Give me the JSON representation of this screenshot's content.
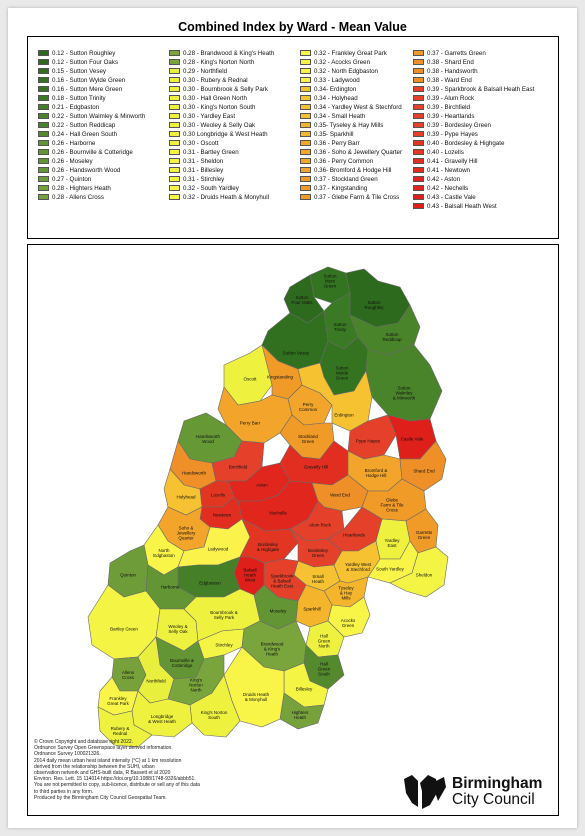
{
  "title": "Combined Index by Ward - Mean Value",
  "colors": {
    "c012": "#2f6b1f",
    "c016": "#2f6b1f",
    "c021": "#4a8a2a",
    "c026": "#6b9a35",
    "c028": "#7ea33c",
    "c029": "#e9f03e",
    "c031": "#fff44a",
    "c034": "#f4b42c",
    "c037": "#f0982a",
    "c039": "#e43a25",
    "c043": "#e31f1a"
  },
  "legend": {
    "columns": [
      [
        {
          "label": "0.12 - Sutton Roughley",
          "color": "#2d6a1d"
        },
        {
          "label": "0.12 - Sutton Four Oaks",
          "color": "#2d6a1d"
        },
        {
          "label": "0.15 - Sutton Vesey",
          "color": "#31701f"
        },
        {
          "label": "0.16 - Sutton Wylde Green",
          "color": "#347421"
        },
        {
          "label": "0.16 - Sutton Mere Green",
          "color": "#347421"
        },
        {
          "label": "0.18 - Sutton Trinity",
          "color": "#3a7a24"
        },
        {
          "label": "0.21 - Edgbaston",
          "color": "#457f27"
        },
        {
          "label": "0.22 - Sutton Walmley & Minworth",
          "color": "#4a842a"
        },
        {
          "label": "0.22 - Sutton Reddicap",
          "color": "#4a842a"
        },
        {
          "label": "0.24 - Hall Green South",
          "color": "#55892e"
        },
        {
          "label": "0.26 - Harborne",
          "color": "#639534"
        },
        {
          "label": "0.26 - Bournville & Cotteridge",
          "color": "#639534"
        },
        {
          "label": "0.26 - Moseley",
          "color": "#639534"
        },
        {
          "label": "0.26 - Handsworth Wood",
          "color": "#669835"
        },
        {
          "label": "0.27 - Quinton",
          "color": "#6e9c38"
        },
        {
          "label": "0.28 - Highters Heath",
          "color": "#77a13b"
        },
        {
          "label": "0.28 - Allens Cross",
          "color": "#77a13b"
        }
      ],
      [
        {
          "label": "0.28 - Brandwood & King's Heath",
          "color": "#7aa43c"
        },
        {
          "label": "0.28 - King's Norton North",
          "color": "#7aa43c"
        },
        {
          "label": "0.29 - Northfield",
          "color": "#e8ef3c"
        },
        {
          "label": "0.30 - Rubery & Rednal",
          "color": "#eef23e"
        },
        {
          "label": "0.30 - Bournbrook & Selly Park",
          "color": "#eef23e"
        },
        {
          "label": "0.30 - Hall Green North",
          "color": "#eef23e"
        },
        {
          "label": "0.30 - King's Norton South",
          "color": "#eef23e"
        },
        {
          "label": "0.30 - Yardley East",
          "color": "#eef23e"
        },
        {
          "label": "0.30 - Weoley & Selly Oak",
          "color": "#eef23e"
        },
        {
          "label": "0.30 Longbridge & West Heath",
          "color": "#eef23e"
        },
        {
          "label": "0.30 - Oscott",
          "color": "#eef23e"
        },
        {
          "label": "0.31 - Bartley Green",
          "color": "#f3f444"
        },
        {
          "label": "0.31 - Sheldon",
          "color": "#f3f444"
        },
        {
          "label": "0.31 - Billesley",
          "color": "#f3f444"
        },
        {
          "label": "0.31 - Stirchley",
          "color": "#f3f444"
        },
        {
          "label": "0.32 - South Yardley",
          "color": "#f8f548"
        },
        {
          "label": "0.32 - Druids Heath & Monyhull",
          "color": "#f8f548"
        }
      ],
      [
        {
          "label": "0.32 - Frankley Great Park",
          "color": "#f8f548"
        },
        {
          "label": "0.32 - Acocks Green",
          "color": "#f8f548"
        },
        {
          "label": "0.32 - North Edgbaston",
          "color": "#f8f548"
        },
        {
          "label": "0.33 - Ladywood",
          "color": "#fbf24c"
        },
        {
          "label": "0.34- Erdington",
          "color": "#f6c232"
        },
        {
          "label": "0.34 - Holyhead",
          "color": "#f6c232"
        },
        {
          "label": "0.34 - Yardley West & Stechford",
          "color": "#f6c232"
        },
        {
          "label": "0.34 - Small Heath",
          "color": "#f6c232"
        },
        {
          "label": "0.35- Tyseley & Hay Mills",
          "color": "#f4b42c"
        },
        {
          "label": "0.35- Sparkhill",
          "color": "#f4b42c"
        },
        {
          "label": "0.36 - Perry Barr",
          "color": "#f2a52a"
        },
        {
          "label": "0.36 - Soho & Jewellery Quarter",
          "color": "#f2a52a"
        },
        {
          "label": "0.36 - Perry Common",
          "color": "#f2a52a"
        },
        {
          "label": "0.36- Bromford & Hodge Hill",
          "color": "#f2a52a"
        },
        {
          "label": "0.37 - Stockland Green",
          "color": "#f09a28"
        },
        {
          "label": "0.37 - Kingstanding",
          "color": "#f09a28"
        },
        {
          "label": "0.37 - Glebe Farm & Tile Cross",
          "color": "#f09a28"
        }
      ],
      [
        {
          "label": "0.37 - Garretts Green",
          "color": "#f09a28"
        },
        {
          "label": "0.38 - Shard End",
          "color": "#ee8f27"
        },
        {
          "label": "0.38 - Handsworth",
          "color": "#ee8f27"
        },
        {
          "label": "0.38 - Ward End",
          "color": "#ee8f27"
        },
        {
          "label": "0.39 - Sparkbrook & Balsall Heath East",
          "color": "#e4402a"
        },
        {
          "label": "0.39 - Alum Rock",
          "color": "#e4402a"
        },
        {
          "label": "0.39 - Birchfield",
          "color": "#e4402a"
        },
        {
          "label": "0.39 - Heartlands",
          "color": "#e4402a"
        },
        {
          "label": "0.39 - Bordesley Green",
          "color": "#e4402a"
        },
        {
          "label": "0.39 - Pype Hayes",
          "color": "#e4402a"
        },
        {
          "label": "0.40 - Bordesley & Highgate",
          "color": "#e23623"
        },
        {
          "label": "0.40 - Lozells",
          "color": "#e23623"
        },
        {
          "label": "0.41 - Gravelly Hill",
          "color": "#e12e20"
        },
        {
          "label": "0.41 - Newtown",
          "color": "#e12e20"
        },
        {
          "label": "0.42 - Aston",
          "color": "#e0261d"
        },
        {
          "label": "0.42 - Nechells",
          "color": "#e0261d"
        },
        {
          "label": "0.43 - Castle Vale",
          "color": "#df1f1a"
        },
        {
          "label": "0.43 - Balsall Heath West",
          "color": "#df1f1a"
        }
      ]
    ]
  },
  "wards": [
    {
      "id": "sutton-mere-green",
      "label": "Sutton\nMere\nGreen",
      "color": "#347421"
    },
    {
      "id": "sutton-four-oaks",
      "label": "Sutton\nFour Oaks",
      "color": "#2d6a1d"
    },
    {
      "id": "sutton-roughley",
      "label": "Sutton\nRoughley",
      "color": "#2d6a1d"
    },
    {
      "id": "sutton-trinity",
      "label": "Sutton\nTrinity",
      "color": "#3a7a24"
    },
    {
      "id": "sutton-reddicap",
      "label": "Sutton\nReddicap",
      "color": "#4a842a"
    },
    {
      "id": "sutton-vesey",
      "label": "Sutton Vesey",
      "color": "#31701f"
    },
    {
      "id": "sutton-wylde-green",
      "label": "Sutton\nWylde\nGreen",
      "color": "#347421"
    },
    {
      "id": "sutton-walmley",
      "label": "Sutton\nWalmley\n& Minworth",
      "color": "#4a842a"
    },
    {
      "id": "oscott",
      "label": "Oscott",
      "color": "#eef23e"
    },
    {
      "id": "kingstanding",
      "label": "Kingstanding",
      "color": "#f09a28"
    },
    {
      "id": "perry-common",
      "label": "Perry\nCommon",
      "color": "#f2a52a"
    },
    {
      "id": "erdington",
      "label": "Erdington",
      "color": "#f6c232"
    },
    {
      "id": "perry-barr",
      "label": "Perry Barr",
      "color": "#f2a52a"
    },
    {
      "id": "stockland-green",
      "label": "Stockland\nGreen",
      "color": "#f09a28"
    },
    {
      "id": "pype-hayes",
      "label": "Pype Hayes",
      "color": "#e4402a"
    },
    {
      "id": "castle-vale",
      "label": "Castle Vale",
      "color": "#df1f1a"
    },
    {
      "id": "handsworth-wood",
      "label": "Handsworth\nWood",
      "color": "#669835"
    },
    {
      "id": "handsworth",
      "label": "Handsworth",
      "color": "#ee8f27"
    },
    {
      "id": "holyhead",
      "label": "Holyhead",
      "color": "#f6c232"
    },
    {
      "id": "birchfield",
      "label": "Birchfield",
      "color": "#e4402a"
    },
    {
      "id": "lozells",
      "label": "Lozells",
      "color": "#e23623"
    },
    {
      "id": "aston",
      "label": "Aston",
      "color": "#e0261d"
    },
    {
      "id": "gravelly-hill",
      "label": "Gravelly Hill",
      "color": "#e12e20"
    },
    {
      "id": "newtown",
      "label": "Newtown",
      "color": "#e12e20"
    },
    {
      "id": "soho",
      "label": "Soho &\nJewellery\nQuarter",
      "color": "#f2a52a"
    },
    {
      "id": "nechells",
      "label": "Nechells",
      "color": "#e0261d"
    },
    {
      "id": "bromford",
      "label": "Bromford &\nHodge Hill",
      "color": "#f2a52a"
    },
    {
      "id": "ward-end",
      "label": "Ward End",
      "color": "#ee8f27"
    },
    {
      "id": "shard-end",
      "label": "Shard End",
      "color": "#ee8f27"
    },
    {
      "id": "glebe-farm",
      "label": "Glebe\nFarm & Tile\nCross",
      "color": "#f09a28"
    },
    {
      "id": "alum-rock",
      "label": "Alum Rock",
      "color": "#e4402a"
    },
    {
      "id": "north-edgbaston",
      "label": "North\nEdgbaston",
      "color": "#f8f548"
    },
    {
      "id": "ladywood",
      "label": "Ladywood",
      "color": "#fbf24c"
    },
    {
      "id": "heartlands",
      "label": "Heartlands",
      "color": "#e4402a"
    },
    {
      "id": "bordesley-highgate",
      "label": "Bordesley\n& Highgate",
      "color": "#e23623"
    },
    {
      "id": "bordesley-green",
      "label": "Bordesley\nGreen",
      "color": "#e4402a"
    },
    {
      "id": "small-heath",
      "label": "Small\nHeath",
      "color": "#f6c232"
    },
    {
      "id": "yardley-west",
      "label": "Yardley West\n& Stechford",
      "color": "#f6c232"
    },
    {
      "id": "yardley-east",
      "label": "Yardley\nEast",
      "color": "#eef23e"
    },
    {
      "id": "garretts-green",
      "label": "Garretts\nGreen",
      "color": "#f09a28"
    },
    {
      "id": "sparkbrook",
      "label": "Sparkbrook\n& Balsall\nHeath East",
      "color": "#e4402a"
    },
    {
      "id": "balsall-heath-west",
      "label": "Balsall\nHeath\nWest",
      "color": "#df1f1a"
    },
    {
      "id": "tyseley",
      "label": "Tyseley\n& Hay\nMills",
      "color": "#f4b42c"
    },
    {
      "id": "south-yardley",
      "label": "South Yardley",
      "color": "#f8f548"
    },
    {
      "id": "sheldon",
      "label": "Sheldon",
      "color": "#f3f444"
    },
    {
      "id": "edgbaston",
      "label": "Edgbaston",
      "color": "#457f27"
    },
    {
      "id": "quinton",
      "label": "Quinton",
      "color": "#6e9c38"
    },
    {
      "id": "harborne",
      "label": "Harborne",
      "color": "#639534"
    },
    {
      "id": "moseley",
      "label": "Moseley",
      "color": "#639534"
    },
    {
      "id": "sparkhill",
      "label": "Sparkhill",
      "color": "#f4b42c"
    },
    {
      "id": "acocks-green",
      "label": "Acocks\nGreen",
      "color": "#f8f548"
    },
    {
      "id": "hall-green-north",
      "label": "Hall\nGreen\nNorth",
      "color": "#eef23e"
    },
    {
      "id": "hall-green-south",
      "label": "Hall\nGreen\nSouth",
      "color": "#55892e"
    },
    {
      "id": "bartley-green",
      "label": "Bartley Green",
      "color": "#f3f444"
    },
    {
      "id": "weoley",
      "label": "Weoley &\nSelly Oak",
      "color": "#eef23e"
    },
    {
      "id": "bournbrook",
      "label": "Bournbrook &\nSelly Park",
      "color": "#eef23e"
    },
    {
      "id": "bournville",
      "label": "Bournville &\nCotteridge",
      "color": "#639534"
    },
    {
      "id": "stirchley",
      "label": "Stirchley",
      "color": "#f3f444"
    },
    {
      "id": "brandwood",
      "label": "Brandwood\n& King's\nHeath",
      "color": "#7aa43c"
    },
    {
      "id": "billesley",
      "label": "Billesley",
      "color": "#f3f444"
    },
    {
      "id": "allens-cross",
      "label": "Allens\nCross",
      "color": "#77a13b"
    },
    {
      "id": "northfield",
      "label": "Northfield",
      "color": "#e8ef3c"
    },
    {
      "id": "frankley",
      "label": "Frankley\nGreat Park",
      "color": "#f8f548"
    },
    {
      "id": "kings-norton-north",
      "label": "King's\nNorton\nNorth",
      "color": "#7aa43c"
    },
    {
      "id": "highters-heath",
      "label": "Highters\nHeath",
      "color": "#77a13b"
    },
    {
      "id": "druids-heath",
      "label": "Druids Heath\n& Monyhull",
      "color": "#f8f548"
    },
    {
      "id": "kings-norton-south",
      "label": "King's Norton\nSouth",
      "color": "#eef23e"
    },
    {
      "id": "longbridge",
      "label": "Longbridge\n& West Heath",
      "color": "#eef23e"
    },
    {
      "id": "rubery",
      "label": "Rubery &\nRednal",
      "color": "#eef23e"
    }
  ],
  "credits": [
    "© Crown Copyright and database right 2022.",
    "Ordnance Survey Open Greenspace layer derived information.",
    "Ordnance Survey 100021326.",
    "2014 daily mean urban heat island intensity (°C) at 1 km resolution",
    "derived from the relationship between the SUHI, urban",
    "observation network and GHS-built data, R Bassett et al 2020",
    "Environ. Res. Lett. 15 114014 https://doi.org/10.1088/1748-9326/abbb51.",
    "You are not permitted to copy, sub-licence, distribute or sell any of this data",
    "to third parties in any form.",
    "Produced by the Birmingham City Council Geospatial Team."
  ],
  "logo": {
    "name": "Birmingham",
    "sub": "City Council"
  }
}
